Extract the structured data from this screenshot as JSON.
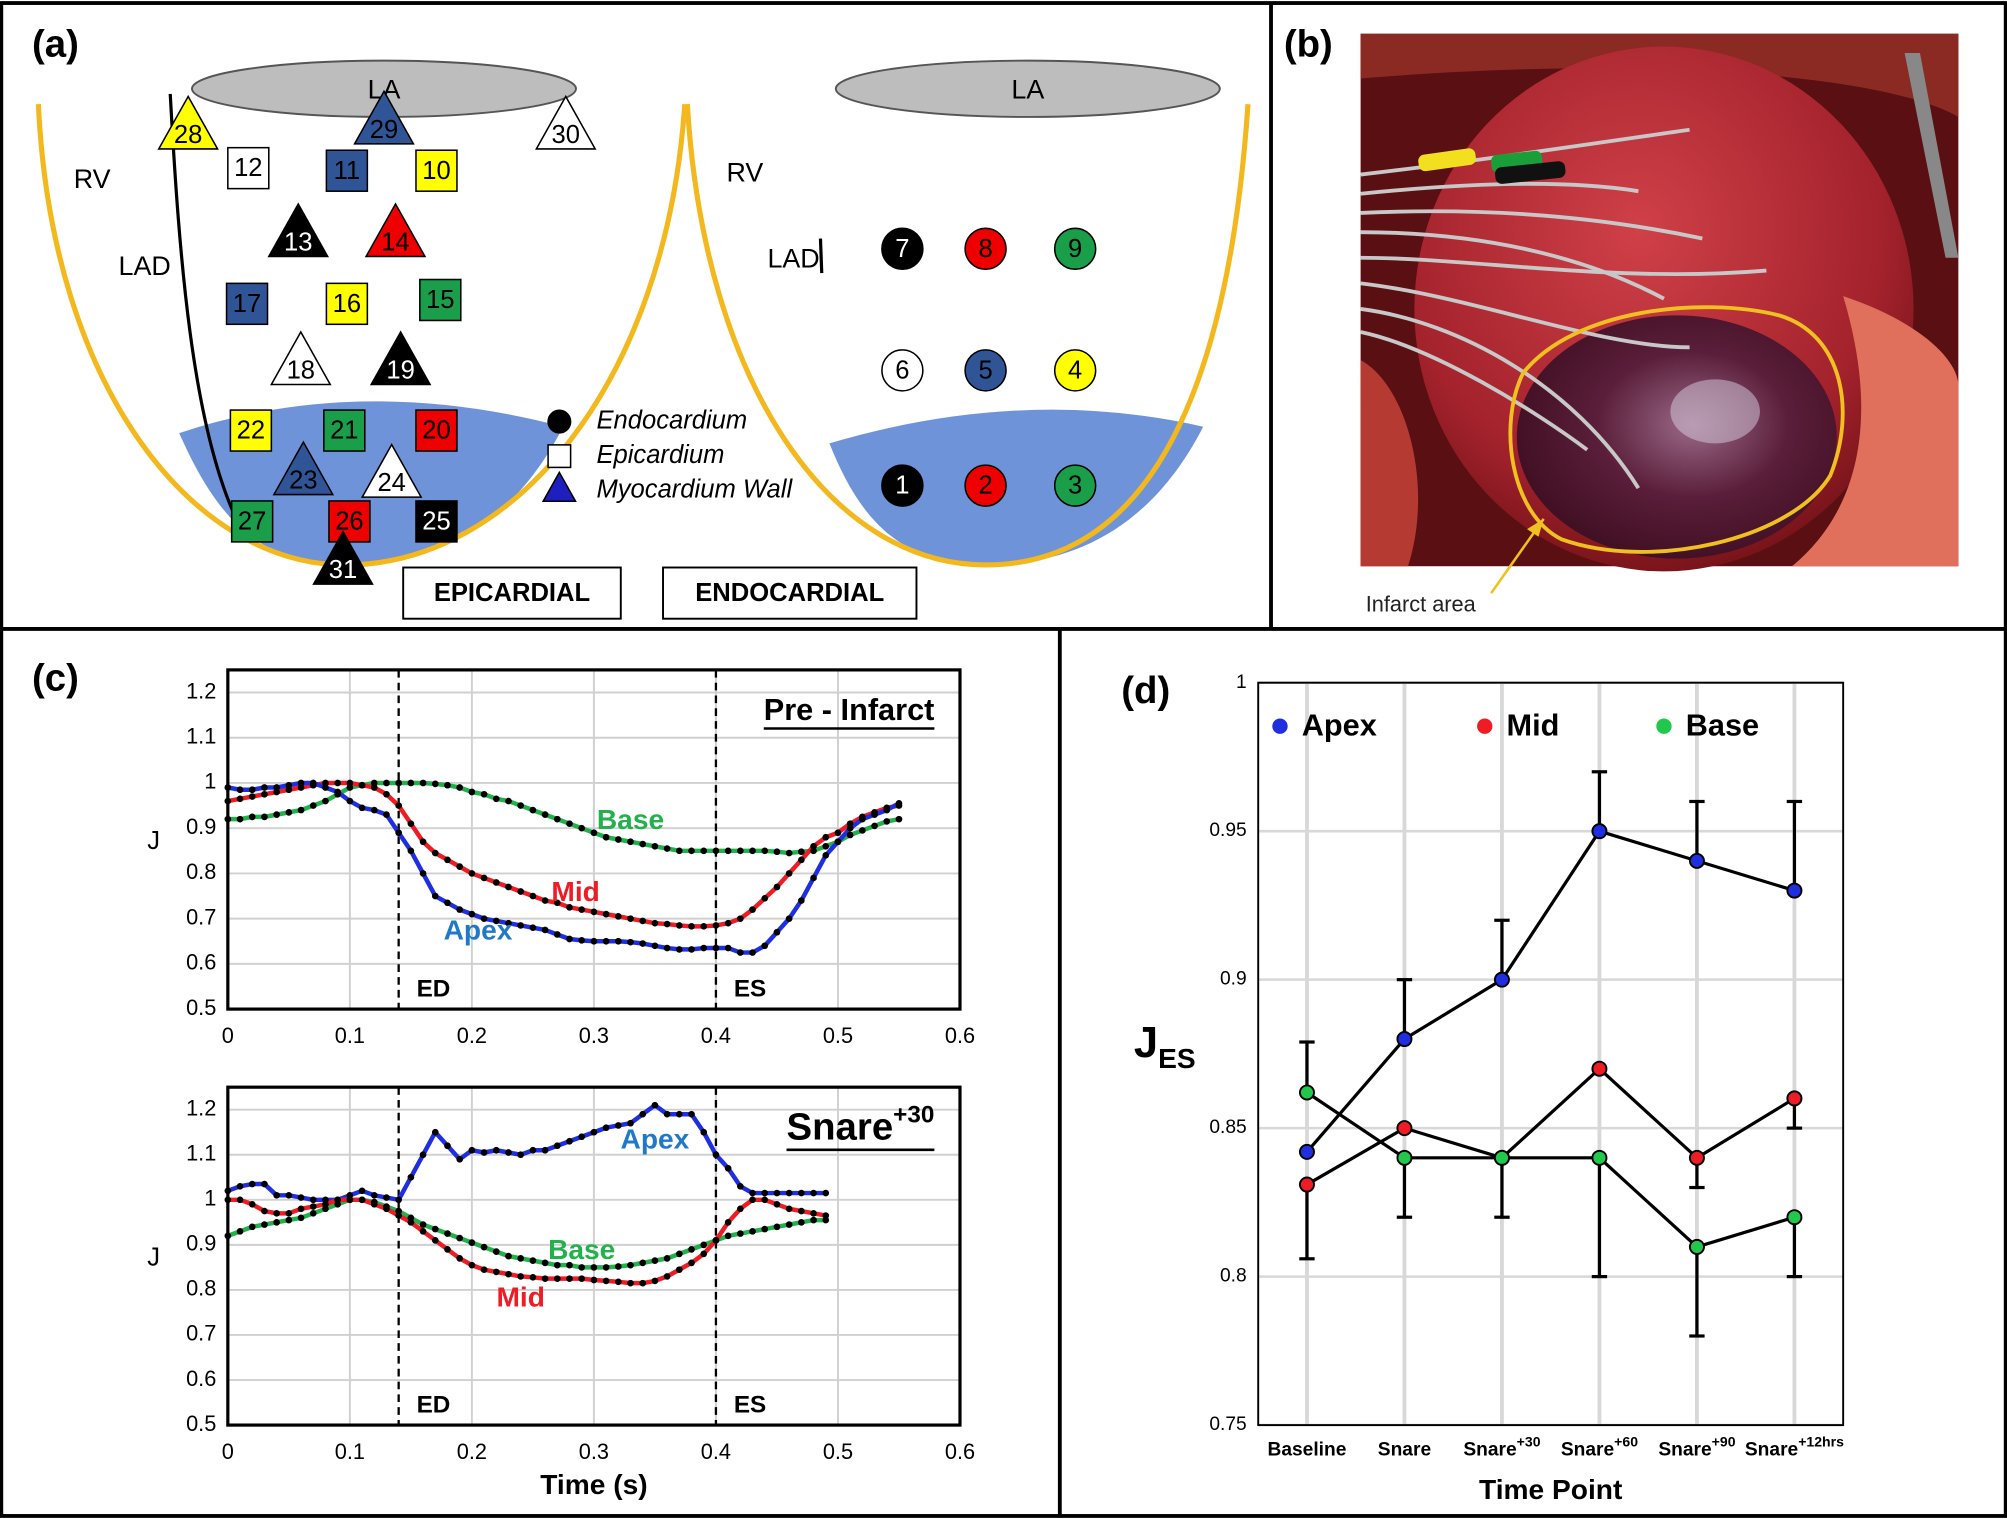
{
  "panel_labels": [
    "(a)",
    "(b)",
    "(c)",
    "(d)"
  ],
  "diagram": {
    "labels": [
      "LA",
      "RV",
      "LAD",
      "LA",
      "RV",
      "LAD"
    ],
    "markers": [
      {
        "label": "28",
        "shape": "triangle",
        "color": "#ffff00"
      },
      {
        "label": "29",
        "shape": "triangle",
        "color": "#2f5597"
      },
      {
        "label": "30",
        "shape": "triangle",
        "color": "#ffffff"
      },
      {
        "label": "12",
        "shape": "square",
        "color": "#ffffff"
      },
      {
        "label": "11",
        "shape": "square",
        "color": "#2f5597"
      },
      {
        "label": "10",
        "shape": "square",
        "color": "#ffff00"
      },
      {
        "label": "13",
        "shape": "triangle",
        "color": "#000000"
      },
      {
        "label": "14",
        "shape": "triangle",
        "color": "#ee0000"
      },
      {
        "label": "17",
        "shape": "square",
        "color": "#2f5597"
      },
      {
        "label": "16",
        "shape": "square",
        "color": "#ffff00"
      },
      {
        "label": "15",
        "shape": "square",
        "color": "#1a9e4a"
      },
      {
        "label": "18",
        "shape": "triangle",
        "color": "#ffffff"
      },
      {
        "label": "19",
        "shape": "triangle",
        "color": "#000000"
      },
      {
        "label": "22",
        "shape": "square",
        "color": "#ffff00"
      },
      {
        "label": "21",
        "shape": "square",
        "color": "#1a9e4a"
      },
      {
        "label": "20",
        "shape": "square",
        "color": "#ee0000"
      },
      {
        "label": "23",
        "shape": "triangle",
        "color": "#2f5597"
      },
      {
        "label": "24",
        "shape": "triangle",
        "color": "#ffffff"
      },
      {
        "label": "27",
        "shape": "square",
        "color": "#1a9e4a"
      },
      {
        "label": "26",
        "shape": "square",
        "color": "#ee0000"
      },
      {
        "label": "25",
        "shape": "square",
        "color": "#000000"
      },
      {
        "label": "31",
        "shape": "triangle",
        "color": "#000000"
      },
      {
        "label": "7",
        "shape": "circle",
        "color": "#000000"
      },
      {
        "label": "8",
        "shape": "circle",
        "color": "#ee0000"
      },
      {
        "label": "9",
        "shape": "circle",
        "color": "#1a9e4a"
      },
      {
        "label": "6",
        "shape": "circle",
        "color": "#ffffff"
      },
      {
        "label": "5",
        "shape": "circle",
        "color": "#2f5597"
      },
      {
        "label": "4",
        "shape": "circle",
        "color": "#ffff00"
      },
      {
        "label": "1",
        "shape": "circle",
        "color": "#000000"
      },
      {
        "label": "2",
        "shape": "circle",
        "color": "#ee0000"
      },
      {
        "label": "3",
        "shape": "circle",
        "color": "#1a9e4a"
      }
    ],
    "legend": [
      {
        "text": "Endocardium",
        "shape": "circle",
        "color": "#000000"
      },
      {
        "text": "Epicardium",
        "shape": "square",
        "color": "#ffffff"
      },
      {
        "text": "Myocardium Wall",
        "shape": "triangle",
        "color": "#1f1fbf"
      }
    ],
    "views": [
      "EPICARDIAL",
      "ENDOCARDIAL"
    ]
  },
  "photo": {
    "annotation": "Infarct area"
  },
  "chart_data": [
    {
      "type": "line",
      "title": "Pre - Infarct",
      "ylabel": "J",
      "xlim": [
        0,
        0.6
      ],
      "xticks": [
        0,
        0.1,
        0.2,
        0.3,
        0.4,
        0.5,
        0.6
      ],
      "ylim": [
        0.5,
        1.25
      ],
      "yticks": [
        0.5,
        0.6,
        0.7,
        0.8,
        0.9,
        1,
        1.1,
        1.2
      ],
      "grid": true,
      "marker_color": "#000000",
      "vlines": [
        {
          "x": 0.14,
          "label": "ED"
        },
        {
          "x": 0.4,
          "label": "ES"
        }
      ],
      "x": [
        0,
        0.01,
        0.02,
        0.03,
        0.04,
        0.05,
        0.06,
        0.07,
        0.08,
        0.09,
        0.1,
        0.11,
        0.12,
        0.13,
        0.14,
        0.15,
        0.16,
        0.17,
        0.18,
        0.19,
        0.2,
        0.21,
        0.22,
        0.23,
        0.24,
        0.25,
        0.26,
        0.27,
        0.28,
        0.29,
        0.3,
        0.31,
        0.32,
        0.33,
        0.34,
        0.35,
        0.36,
        0.37,
        0.38,
        0.39,
        0.4,
        0.41,
        0.42,
        0.43,
        0.44,
        0.45,
        0.46,
        0.47,
        0.48,
        0.49,
        0.5,
        0.51,
        0.52,
        0.53,
        0.54,
        0.55
      ],
      "series": [
        {
          "name": "Base",
          "color": "#22b14c",
          "values": [
            0.92,
            0.92,
            0.925,
            0.925,
            0.93,
            0.935,
            0.94,
            0.95,
            0.96,
            0.975,
            0.99,
            0.995,
            1.0,
            1.0,
            1.0,
            1.0,
            1.0,
            0.998,
            0.995,
            0.99,
            0.98,
            0.975,
            0.965,
            0.96,
            0.95,
            0.94,
            0.93,
            0.92,
            0.91,
            0.9,
            0.89,
            0.88,
            0.875,
            0.87,
            0.865,
            0.86,
            0.855,
            0.85,
            0.85,
            0.85,
            0.85,
            0.85,
            0.85,
            0.85,
            0.85,
            0.848,
            0.845,
            0.848,
            0.85,
            0.86,
            0.87,
            0.885,
            0.895,
            0.905,
            0.915,
            0.92
          ]
        },
        {
          "name": "Mid",
          "color": "#ee1c24",
          "values": [
            0.96,
            0.965,
            0.97,
            0.975,
            0.98,
            0.985,
            0.99,
            0.995,
            1.0,
            1.0,
            1.0,
            0.995,
            0.99,
            0.975,
            0.95,
            0.91,
            0.87,
            0.845,
            0.83,
            0.815,
            0.8,
            0.79,
            0.78,
            0.77,
            0.76,
            0.75,
            0.74,
            0.735,
            0.725,
            0.72,
            0.715,
            0.71,
            0.705,
            0.7,
            0.695,
            0.69,
            0.688,
            0.685,
            0.683,
            0.683,
            0.685,
            0.69,
            0.7,
            0.72,
            0.745,
            0.77,
            0.8,
            0.83,
            0.86,
            0.88,
            0.89,
            0.91,
            0.925,
            0.935,
            0.945,
            0.95
          ]
        },
        {
          "name": "Apex",
          "color": "#1f2fe0",
          "label_color": "#1f78c8",
          "values": [
            0.99,
            0.985,
            0.985,
            0.99,
            0.99,
            0.995,
            1.0,
            1.0,
            0.99,
            0.98,
            0.96,
            0.945,
            0.94,
            0.93,
            0.89,
            0.85,
            0.8,
            0.75,
            0.735,
            0.72,
            0.71,
            0.7,
            0.695,
            0.69,
            0.685,
            0.68,
            0.675,
            0.665,
            0.655,
            0.652,
            0.65,
            0.65,
            0.65,
            0.648,
            0.645,
            0.64,
            0.635,
            0.632,
            0.632,
            0.635,
            0.635,
            0.635,
            0.625,
            0.625,
            0.64,
            0.67,
            0.7,
            0.74,
            0.79,
            0.84,
            0.87,
            0.9,
            0.92,
            0.93,
            0.94,
            0.955
          ]
        }
      ]
    },
    {
      "type": "line",
      "title": "Snare",
      "title_superscript": "+30",
      "ylabel": "J",
      "xlabel": "Time (s)",
      "xlim": [
        0,
        0.6
      ],
      "xticks": [
        0,
        0.1,
        0.2,
        0.3,
        0.4,
        0.5,
        0.6
      ],
      "ylim": [
        0.5,
        1.25
      ],
      "yticks": [
        0.5,
        0.6,
        0.7,
        0.8,
        0.9,
        1,
        1.1,
        1.2
      ],
      "grid": true,
      "marker_color": "#000000",
      "vlines": [
        {
          "x": 0.14,
          "label": "ED"
        },
        {
          "x": 0.4,
          "label": "ES"
        }
      ],
      "x": [
        0,
        0.01,
        0.02,
        0.03,
        0.04,
        0.05,
        0.06,
        0.07,
        0.08,
        0.09,
        0.1,
        0.11,
        0.12,
        0.13,
        0.14,
        0.15,
        0.16,
        0.17,
        0.18,
        0.19,
        0.2,
        0.21,
        0.22,
        0.23,
        0.24,
        0.25,
        0.26,
        0.27,
        0.28,
        0.29,
        0.3,
        0.31,
        0.32,
        0.33,
        0.34,
        0.35,
        0.36,
        0.37,
        0.38,
        0.39,
        0.4,
        0.41,
        0.42,
        0.43,
        0.44,
        0.45,
        0.46,
        0.47,
        0.48,
        0.49
      ],
      "series": [
        {
          "name": "Apex",
          "color": "#1f2fe0",
          "label_color": "#1f78c8",
          "values": [
            1.02,
            1.03,
            1.035,
            1.035,
            1.01,
            1.01,
            1.005,
            1.0,
            1.0,
            1.0,
            1.01,
            1.02,
            1.01,
            1.005,
            1.0,
            1.05,
            1.1,
            1.15,
            1.12,
            1.09,
            1.11,
            1.105,
            1.11,
            1.105,
            1.1,
            1.11,
            1.11,
            1.12,
            1.13,
            1.14,
            1.15,
            1.16,
            1.165,
            1.17,
            1.19,
            1.21,
            1.19,
            1.19,
            1.19,
            1.15,
            1.1,
            1.07,
            1.03,
            1.015,
            1.015,
            1.015,
            1.015,
            1.015,
            1.015,
            1.015
          ]
        },
        {
          "name": "Base",
          "color": "#22b14c",
          "values": [
            0.92,
            0.93,
            0.94,
            0.945,
            0.95,
            0.955,
            0.96,
            0.97,
            0.98,
            0.99,
            1.0,
            1.0,
            0.995,
            0.985,
            0.975,
            0.96,
            0.945,
            0.935,
            0.925,
            0.915,
            0.905,
            0.895,
            0.885,
            0.875,
            0.87,
            0.865,
            0.86,
            0.855,
            0.855,
            0.85,
            0.85,
            0.85,
            0.852,
            0.855,
            0.86,
            0.865,
            0.87,
            0.88,
            0.89,
            0.9,
            0.91,
            0.92,
            0.925,
            0.93,
            0.935,
            0.94,
            0.945,
            0.95,
            0.955,
            0.955
          ]
        },
        {
          "name": "Mid",
          "color": "#ee1c24",
          "values": [
            1.0,
            1.0,
            0.99,
            0.975,
            0.97,
            0.97,
            0.98,
            0.985,
            0.99,
            1.0,
            1.0,
            1.0,
            0.99,
            0.98,
            0.965,
            0.95,
            0.93,
            0.91,
            0.89,
            0.87,
            0.855,
            0.845,
            0.84,
            0.835,
            0.83,
            0.828,
            0.825,
            0.825,
            0.825,
            0.825,
            0.822,
            0.82,
            0.818,
            0.815,
            0.815,
            0.82,
            0.83,
            0.845,
            0.86,
            0.88,
            0.91,
            0.95,
            0.98,
            1.0,
            1.0,
            0.99,
            0.98,
            0.975,
            0.97,
            0.965
          ]
        }
      ]
    },
    {
      "type": "line",
      "ylabel": "J",
      "ylabel_subscript": "ES",
      "xlabel": "Time Point",
      "categories": [
        "Baseline",
        "Snare",
        "Snare",
        "Snare",
        "Snare",
        "Snare"
      ],
      "category_superscripts": [
        null,
        null,
        "+30",
        "+60",
        "+90",
        "+12hrs"
      ],
      "ylim": [
        0.75,
        1
      ],
      "yticks": [
        0.75,
        0.8,
        0.85,
        0.9,
        0.95,
        1
      ],
      "grid": true,
      "legend": "top",
      "line_color": "#000000",
      "series": [
        {
          "name": "Apex",
          "color": "#1f2fe0",
          "values": [
            0.842,
            0.88,
            0.9,
            0.95,
            0.94,
            0.93
          ],
          "errors_up": [
            null,
            0.02,
            0.02,
            0.02,
            0.02,
            0.03
          ],
          "errors_down": [
            null,
            null,
            null,
            null,
            null,
            null
          ]
        },
        {
          "name": "Mid",
          "color": "#ee1c24",
          "values": [
            0.831,
            0.85,
            0.84,
            0.87,
            0.84,
            0.86
          ],
          "errors_up": [
            null,
            null,
            null,
            null,
            null,
            null
          ],
          "errors_down": [
            0.025,
            null,
            null,
            null,
            0.01,
            0.01
          ]
        },
        {
          "name": "Base",
          "color": "#22c84c",
          "values": [
            0.862,
            0.84,
            0.84,
            0.84,
            0.81,
            0.82
          ],
          "errors_up": [
            0.017,
            null,
            null,
            null,
            null,
            null
          ],
          "errors_down": [
            null,
            0.02,
            0.02,
            0.04,
            0.03,
            0.02
          ]
        }
      ]
    }
  ]
}
